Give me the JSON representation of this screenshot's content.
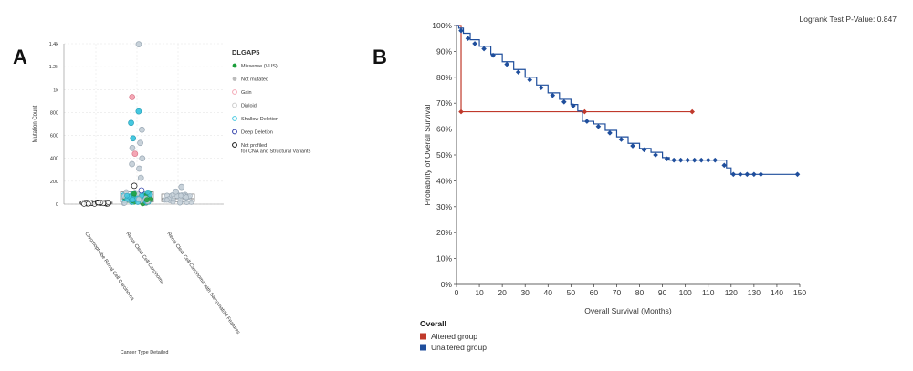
{
  "panels": {
    "a_label": "A",
    "b_label": "B"
  },
  "chart_data": [
    {
      "type": "scatter",
      "title": "",
      "xlabel": "Cancer Type Detailed",
      "ylabel": "Mutation Count",
      "ylim": [
        0,
        1400
      ],
      "y_ticks": [
        0,
        200,
        400,
        600,
        800,
        1000,
        1200,
        1400
      ],
      "y_tick_labels": [
        "0",
        "200",
        "400",
        "600",
        "800",
        "1k",
        "1.2k",
        "1.4k"
      ],
      "grid": true,
      "legend_position": "right",
      "legend_title": "DLGAP5",
      "legend": [
        {
          "label": "Missense (VUS)",
          "color": "#1a9e3a",
          "shape": "dot"
        },
        {
          "label": "Not mutated",
          "color": "#bbbbbb",
          "shape": "dot"
        },
        {
          "label": "Gain",
          "color": "#f4a6b4",
          "shape": "ring"
        },
        {
          "label": "Diploid",
          "color": "#cccccc",
          "shape": "ring"
        },
        {
          "label": "Shallow Deletion",
          "color": "#45c8e0",
          "shape": "ring"
        },
        {
          "label": "Deep Deletion",
          "color": "#2b3aa8",
          "shape": "ring"
        },
        {
          "label": "Not profiled\nfor CNA and Structural Variants",
          "color": "#111111",
          "shape": "ring"
        }
      ],
      "categories": [
        "Chromophobe Renal Cell Carcinoma",
        "Renal Clear Cell Carcinoma",
        "Renal Clear Cell Carcinoma with Sarcomatoid Features"
      ],
      "boxes": [
        {
          "q1": 4,
          "median": 10,
          "q3": 18
        },
        {
          "q1": 18,
          "median": 48,
          "q3": 108
        },
        {
          "q1": 22,
          "median": 48,
          "q3": 88
        }
      ],
      "outliers": [
        {
          "cat": 1,
          "y": 1395,
          "type": "Diploid"
        },
        {
          "cat": 1,
          "y": 935,
          "type": "Gain"
        },
        {
          "cat": 1,
          "y": 810,
          "type": "Shallow Deletion"
        },
        {
          "cat": 1,
          "y": 710,
          "type": "Shallow Deletion"
        },
        {
          "cat": 1,
          "y": 650,
          "type": "Diploid"
        },
        {
          "cat": 1,
          "y": 575,
          "type": "Shallow Deletion"
        },
        {
          "cat": 1,
          "y": 535,
          "type": "Diploid"
        },
        {
          "cat": 1,
          "y": 490,
          "type": "Diploid"
        },
        {
          "cat": 1,
          "y": 440,
          "type": "Gain"
        },
        {
          "cat": 1,
          "y": 400,
          "type": "Diploid"
        },
        {
          "cat": 1,
          "y": 350,
          "type": "Diploid"
        },
        {
          "cat": 1,
          "y": 310,
          "type": "Diploid"
        },
        {
          "cat": 1,
          "y": 230,
          "type": "Diploid"
        },
        {
          "cat": 1,
          "y": 160,
          "type": "Not profiled"
        },
        {
          "cat": 1,
          "y": 120,
          "type": "Deep Deletion"
        },
        {
          "cat": 2,
          "y": 150,
          "type": "Diploid"
        },
        {
          "cat": 2,
          "y": 110,
          "type": "Diploid"
        }
      ]
    },
    {
      "type": "line",
      "title": "",
      "annotation": "Logrank Test P-Value: 0.847",
      "xlabel": "Overall Survival (Months)",
      "ylabel": "Probability of Overall Survival",
      "xlim": [
        0,
        150
      ],
      "ylim": [
        0,
        100
      ],
      "x_ticks": [
        0,
        10,
        20,
        30,
        40,
        50,
        60,
        70,
        80,
        90,
        100,
        110,
        120,
        130,
        140,
        150
      ],
      "y_ticks": [
        0,
        10,
        20,
        30,
        40,
        50,
        60,
        70,
        80,
        90,
        100
      ],
      "y_unit": "%",
      "legend_title": "Overall",
      "legend_position": "bottom-left",
      "series": [
        {
          "name": "Altered group",
          "color": "#c0392b",
          "points": [
            [
              0,
              100
            ],
            [
              2,
              100
            ],
            [
              2,
              66.7
            ],
            [
              103,
              66.7
            ]
          ],
          "censored": [
            [
              2,
              66.7
            ],
            [
              56,
              66.7
            ],
            [
              103,
              66.7
            ]
          ]
        },
        {
          "name": "Unaltered group",
          "color": "#1f4e9c",
          "points": [
            [
              0,
              100
            ],
            [
              1,
              99
            ],
            [
              3,
              97
            ],
            [
              6,
              94.5
            ],
            [
              10,
              92
            ],
            [
              15,
              89
            ],
            [
              20,
              86
            ],
            [
              25,
              83
            ],
            [
              30,
              80
            ],
            [
              35,
              77
            ],
            [
              40,
              74
            ],
            [
              45,
              71.5
            ],
            [
              50,
              69.5
            ],
            [
              53,
              67
            ],
            [
              55,
              63
            ],
            [
              60,
              62
            ],
            [
              65,
              59.5
            ],
            [
              70,
              57
            ],
            [
              75,
              54.5
            ],
            [
              80,
              52.5
            ],
            [
              85,
              51
            ],
            [
              90,
              49
            ],
            [
              93,
              48
            ],
            [
              100,
              48
            ],
            [
              110,
              48
            ],
            [
              116,
              48
            ],
            [
              118,
              45
            ],
            [
              120,
              42.5
            ],
            [
              135,
              42.5
            ],
            [
              149,
              42.5
            ]
          ],
          "censored": [
            [
              2,
              98
            ],
            [
              5,
              95
            ],
            [
              8,
              93
            ],
            [
              12,
              91
            ],
            [
              16,
              88.5
            ],
            [
              22,
              85
            ],
            [
              27,
              82
            ],
            [
              32,
              79
            ],
            [
              37,
              76
            ],
            [
              42,
              73
            ],
            [
              47,
              70.5
            ],
            [
              51,
              69
            ],
            [
              57,
              63
            ],
            [
              62,
              61
            ],
            [
              67,
              58.5
            ],
            [
              72,
              56
            ],
            [
              77,
              53.5
            ],
            [
              82,
              52
            ],
            [
              87,
              50
            ],
            [
              92,
              48.5
            ],
            [
              95,
              48
            ],
            [
              98,
              48
            ],
            [
              101,
              48
            ],
            [
              104,
              48
            ],
            [
              107,
              48
            ],
            [
              110,
              48
            ],
            [
              113,
              48
            ],
            [
              117,
              46
            ],
            [
              121,
              42.5
            ],
            [
              124,
              42.5
            ],
            [
              127,
              42.5
            ],
            [
              130,
              42.5
            ],
            [
              133,
              42.5
            ],
            [
              149,
              42.5
            ]
          ]
        }
      ]
    }
  ]
}
